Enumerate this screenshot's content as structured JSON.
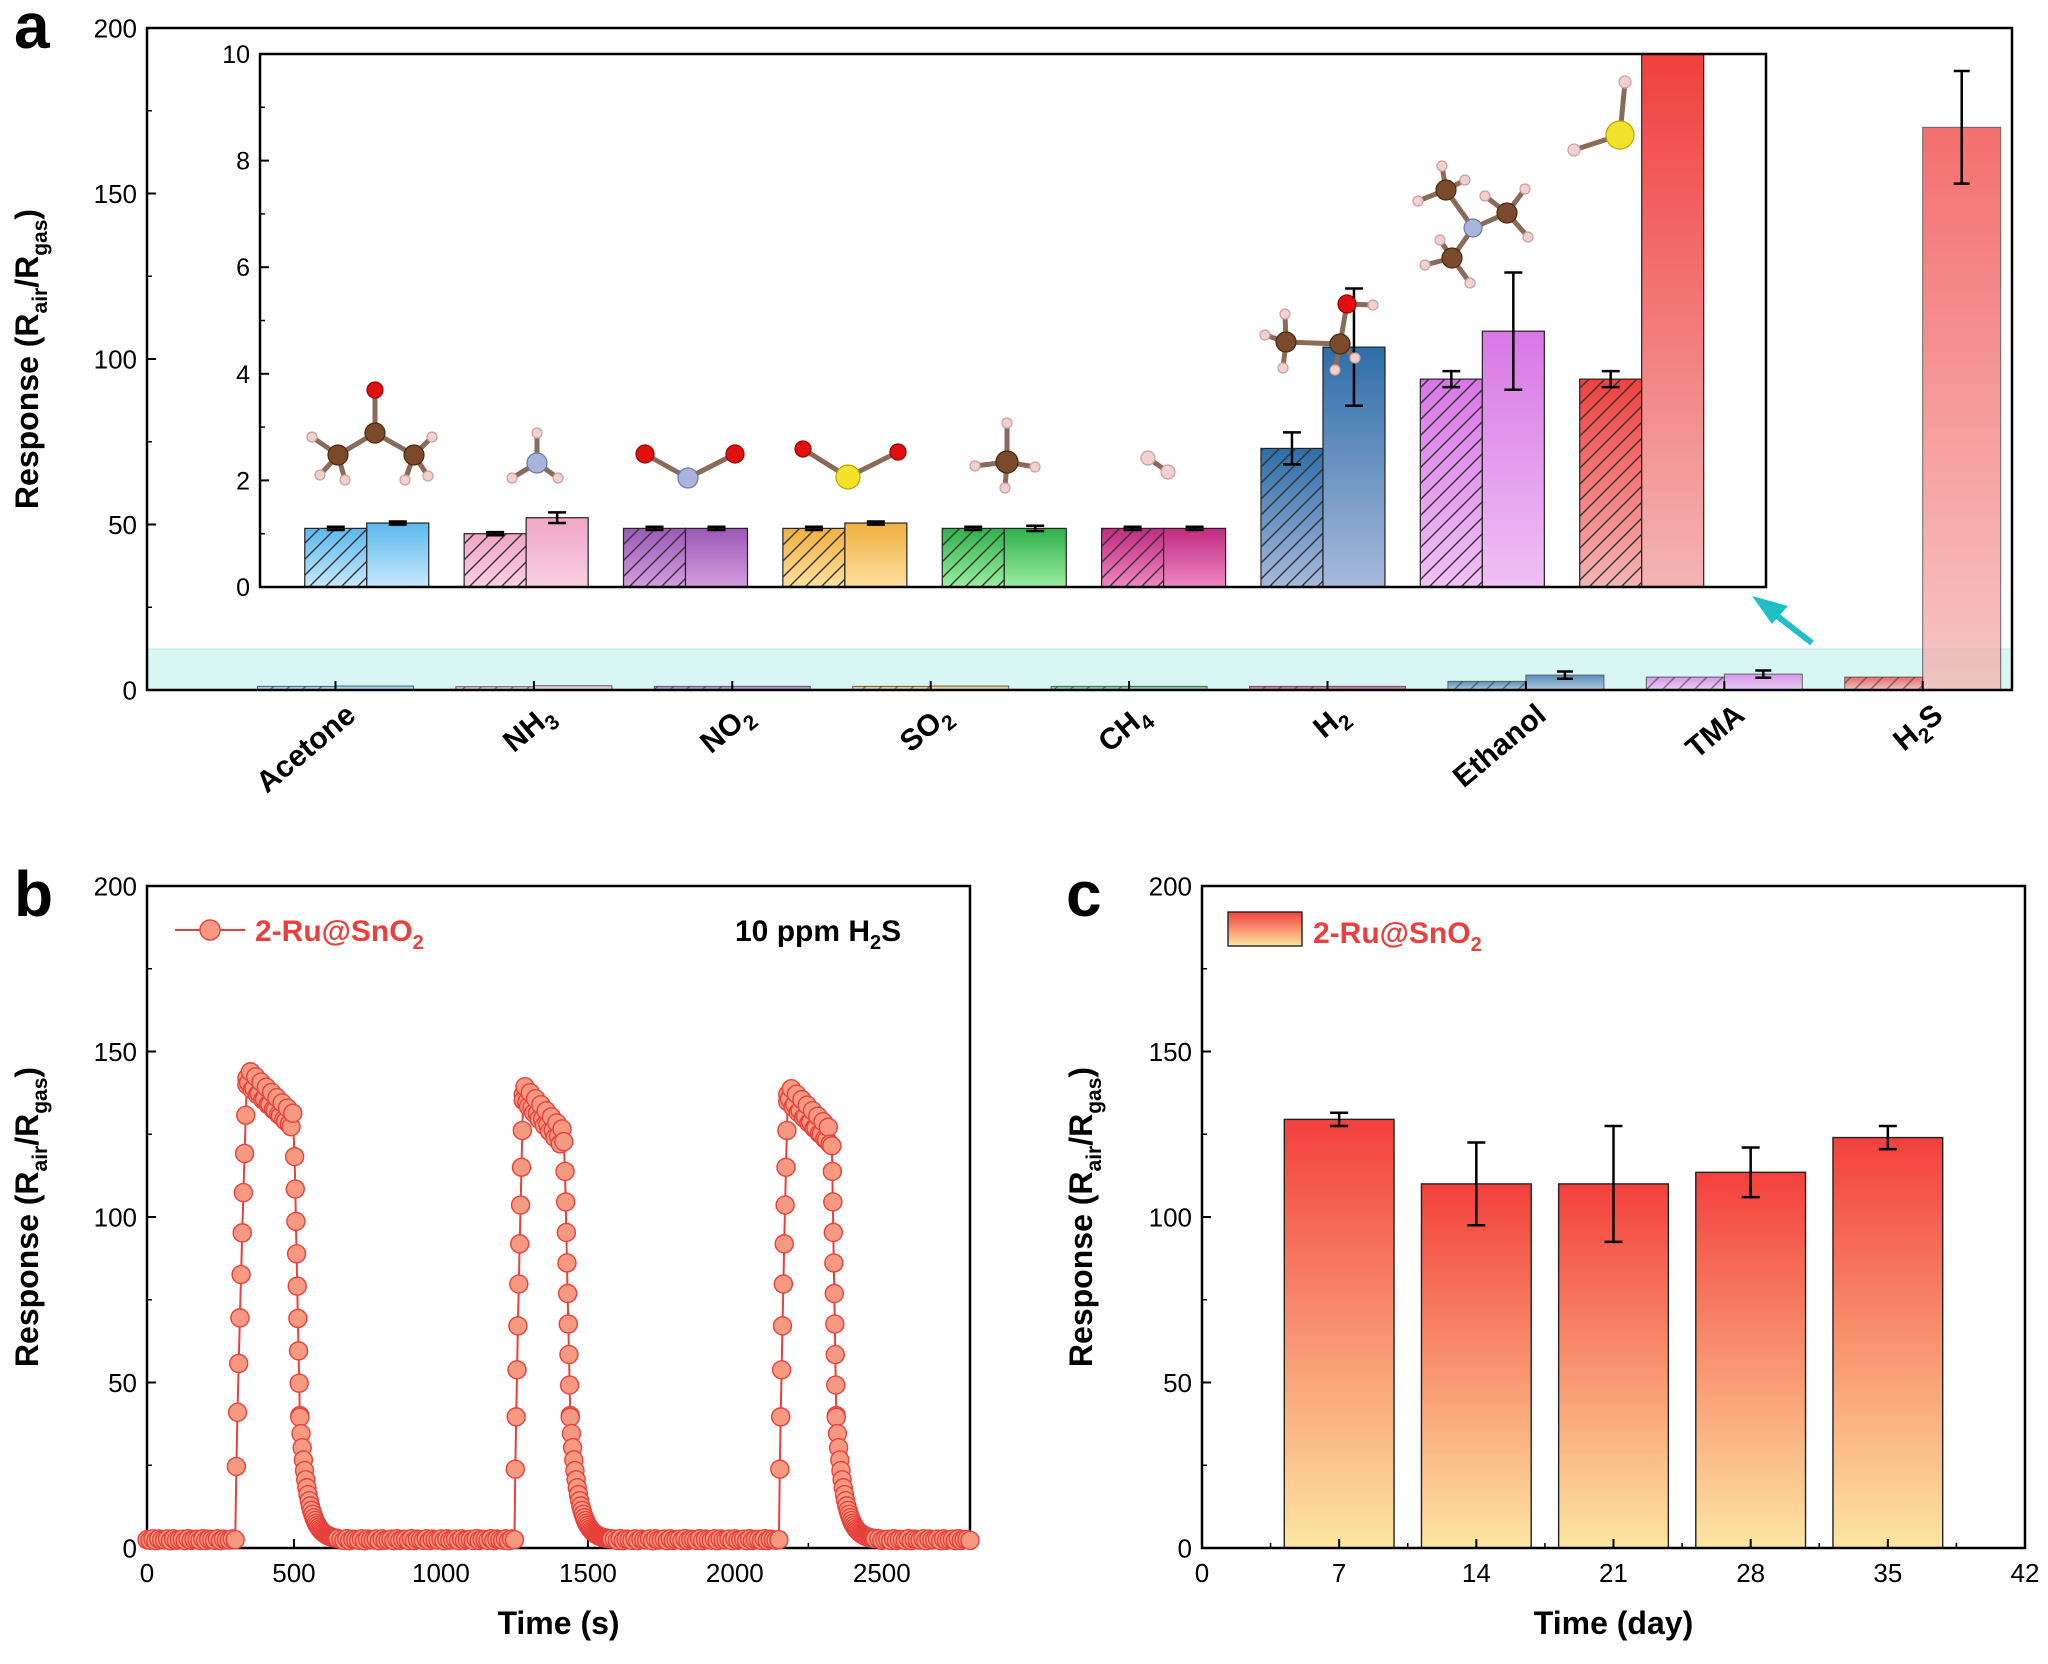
{
  "panel_labels": {
    "a": "a",
    "b": "b",
    "c": "c"
  },
  "response_label": {
    "prefix": "Response (R",
    "air": "air",
    "slash": "/R",
    "gas": "gas",
    "suffix": ")"
  },
  "colors": {
    "axis": "#000000",
    "highlight_band": "#d8f6f4",
    "arrow": "#1fbfc8",
    "series_line": "#e8403c",
    "series_marker": "#f59a80",
    "bar_c_top": "#f3403c",
    "bar_c_bottom": "#fde6a2"
  },
  "chart_data": [
    {
      "panel": "a",
      "type": "bar",
      "ylim": [
        0,
        200
      ],
      "yticks": [
        0,
        50,
        100,
        150,
        200
      ],
      "categories": [
        {
          "main": "Acetone",
          "sub": "",
          "tail": ""
        },
        {
          "main": "NH",
          "sub": "3",
          "tail": ""
        },
        {
          "main": "NO",
          "sub": "2",
          "tail": ""
        },
        {
          "main": "SO",
          "sub": "2",
          "tail": ""
        },
        {
          "main": "CH",
          "sub": "4",
          "tail": ""
        },
        {
          "main": "H",
          "sub": "2",
          "tail": ""
        },
        {
          "main": "Ethanol",
          "sub": "",
          "tail": ""
        },
        {
          "main": "TMA",
          "sub": "",
          "tail": ""
        },
        {
          "main": "H",
          "sub": "2",
          "tail": "S"
        }
      ],
      "series": [
        {
          "values": [
            1.1,
            1.0,
            1.1,
            1.1,
            1.1,
            1.1,
            2.6,
            3.9,
            3.9
          ],
          "errors": [
            0.02,
            0.0,
            0.02,
            0.02,
            0.02,
            0.02,
            0.3,
            0.15,
            0.15
          ],
          "hatched": true
        },
        {
          "values": [
            1.2,
            1.3,
            1.1,
            1.2,
            1.1,
            1.1,
            4.5,
            4.8,
            170
          ],
          "errors": [
            0.03,
            0.1,
            0.02,
            0.02,
            0.05,
            0.02,
            1.1,
            1.1,
            17
          ],
          "hatched": false
        }
      ],
      "bar_colors": [
        [
          "#5bb8ee",
          "#c8e8fb"
        ],
        [
          "#f1a5c8",
          "#f9d0e1"
        ],
        [
          "#9b59b6",
          "#d49ce0"
        ],
        [
          "#f0b040",
          "#fde0a0"
        ],
        [
          "#2fb04a",
          "#9aeea0"
        ],
        [
          "#c02a80",
          "#ee88c2"
        ],
        [
          "#2d6ea8",
          "#a8b9dc"
        ],
        [
          "#d877e6",
          "#f0c0f5"
        ],
        [
          "#f0403e",
          "#f4b4b4"
        ]
      ],
      "inset": {
        "ylim": [
          0,
          10
        ],
        "yticks": [
          0,
          2,
          4,
          6,
          8,
          10
        ],
        "note": "inset zooms the highlighted 0–10 range"
      }
    },
    {
      "panel": "b",
      "type": "scatter",
      "xlabel": "Time (s)",
      "xlim": [
        0,
        2800
      ],
      "xticks": [
        0,
        500,
        1000,
        1500,
        2000,
        2500
      ],
      "ylim": [
        0,
        200
      ],
      "yticks": [
        0,
        50,
        100,
        150,
        200
      ],
      "legend": {
        "prefix": "2-Ru@SnO",
        "sub": "2",
        "position": "top-left"
      },
      "annotation": {
        "prefix": "10 ppm H",
        "sub": "2",
        "suffix": "S"
      },
      "cycles": [
        {
          "rise": [
            300,
            340
          ],
          "hold": [
            340,
            500
          ],
          "peak": 142,
          "fall": [
            500,
            520
          ],
          "tail": 650
        },
        {
          "rise": [
            1250,
            1280
          ],
          "hold": [
            1280,
            1420
          ],
          "peak": 137,
          "fall": [
            1420,
            1440
          ],
          "tail": 1580
        },
        {
          "rise": [
            2150,
            2180
          ],
          "hold": [
            2180,
            2330
          ],
          "peak": 137,
          "fall": [
            2330,
            2345
          ],
          "tail": 2480
        }
      ],
      "baseline": 2.5
    },
    {
      "panel": "c",
      "type": "bar",
      "xlabel": "Time (day)",
      "xlim": [
        0,
        42
      ],
      "xticks": [
        0,
        7,
        14,
        21,
        28,
        35,
        42
      ],
      "ylim": [
        0,
        200
      ],
      "yticks": [
        0,
        50,
        100,
        150,
        200
      ],
      "legend": {
        "prefix": "2-Ru@SnO",
        "sub": "2",
        "position": "top-left"
      },
      "x": [
        7,
        14,
        21,
        28,
        35
      ],
      "values": [
        129.5,
        110,
        110,
        113.5,
        124
      ],
      "errors": [
        2,
        12.5,
        17.5,
        7.5,
        3.5
      ]
    }
  ]
}
